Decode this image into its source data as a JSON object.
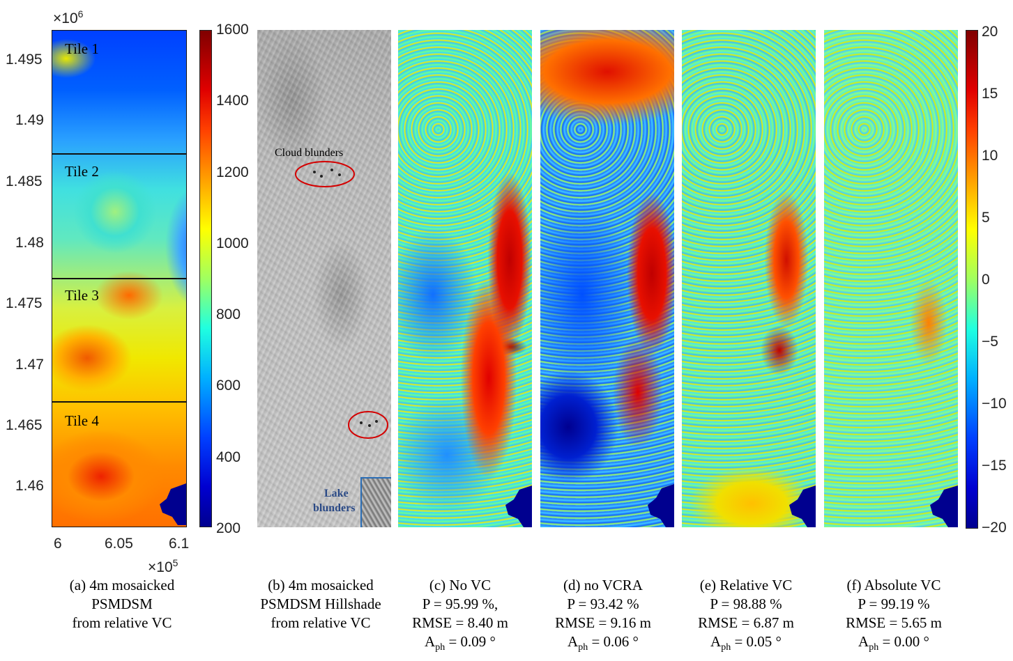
{
  "panel_a": {
    "exp_y": "×10",
    "exp_y_pow": "6",
    "exp_x": "×10",
    "exp_x_pow": "5",
    "yticks": [
      "1.495",
      "1.49",
      "1.485",
      "1.48",
      "1.475",
      "1.47",
      "1.465",
      "1.46"
    ],
    "xticks": [
      "6",
      "6.05",
      "6.1"
    ],
    "tiles": [
      "Tile 1",
      "Tile 2",
      "Tile 3",
      "Tile 4"
    ]
  },
  "colorbar_height": {
    "ticks": [
      "1600",
      "1400",
      "1200",
      "1000",
      "800",
      "600",
      "400",
      "200"
    ]
  },
  "colorbar_diff": {
    "ticks": [
      "20",
      "15",
      "10",
      "5",
      "0",
      "−5",
      "−10",
      "−15",
      "−20"
    ]
  },
  "panel_b": {
    "cloud_label": "Cloud blunders",
    "lake_label_1": "Lake",
    "lake_label_2": "blunders"
  },
  "captions": {
    "a": [
      "(a) 4m mosaicked",
      "PSMDSM",
      "from relative VC"
    ],
    "b": [
      "(b) 4m mosaicked",
      "PSMDSM Hillshade",
      "from relative VC"
    ],
    "c": {
      "t": "(c) No VC",
      "p": "P = 95.99 %,",
      "r": "RMSE = 8.40 m",
      "a1": "A",
      "sub": "ph",
      "a2": " = 0.09 °"
    },
    "d": {
      "t": "(d) no VCRA",
      "p": "P = 93.42 %",
      "r": "RMSE = 9.16 m",
      "a1": "A",
      "sub": "ph",
      "a2": " = 0.06 °"
    },
    "e": {
      "t": "(e) Relative VC",
      "p": "P = 98.88 %",
      "r": "RMSE = 6.87 m",
      "a1": "A",
      "sub": "ph",
      "a2": " = 0.05 °"
    },
    "f": {
      "t": "(f) Absolute VC",
      "p": "P = 99.19 %",
      "r": "RMSE = 5.65 m",
      "a1": "A",
      "sub": "ph",
      "a2": " = 0.00 °"
    }
  },
  "colors": {
    "jet_dark_blue": "#00008f",
    "jet_blue": "#0030ff",
    "jet_cyan": "#00e0ff",
    "jet_yellow": "#f0f000",
    "jet_red": "#e00000",
    "annot_red": "#d40000",
    "annot_blue": "#2a6db5",
    "lake_text": "#2b4a86"
  }
}
